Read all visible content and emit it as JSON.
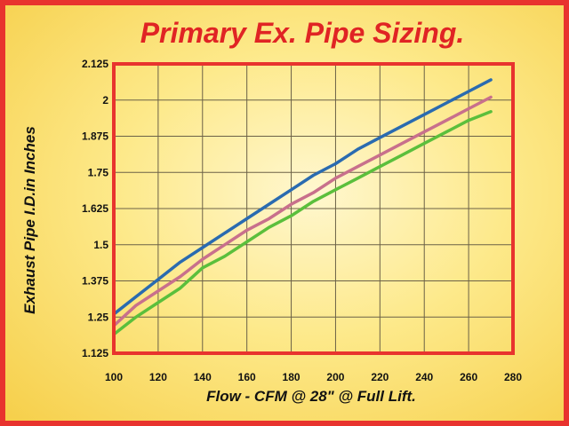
{
  "chart_data": {
    "type": "line",
    "title": "Primary Ex. Pipe Sizing.",
    "xlabel": "Flow - CFM @ 28\" @ Full Lift.",
    "ylabel": "Exhaust Pipe I.D.in Inches",
    "xlim": [
      100,
      280
    ],
    "ylim": [
      1.125,
      2.125
    ],
    "x_ticks": [
      "100",
      "120",
      "140",
      "160",
      "180",
      "200",
      "220",
      "240",
      "260",
      "280"
    ],
    "y_ticks": [
      "1.125",
      "1.25",
      "1.375",
      "1.5",
      "1.625",
      "1.75",
      "1.875",
      "2",
      "2.125"
    ],
    "x_tick_values": [
      100,
      120,
      140,
      160,
      180,
      200,
      220,
      240,
      260,
      280
    ],
    "y_tick_values": [
      1.125,
      1.25,
      1.375,
      1.5,
      1.625,
      1.75,
      1.875,
      2,
      2.125
    ],
    "grid": true,
    "legend": "none",
    "series": [
      {
        "color": "#2a6bb0",
        "x": [
          100,
          110,
          120,
          130,
          140,
          150,
          160,
          170,
          180,
          190,
          200,
          210,
          220,
          230,
          240,
          250,
          260,
          270
        ],
        "y": [
          1.26,
          1.32,
          1.38,
          1.44,
          1.49,
          1.54,
          1.59,
          1.64,
          1.69,
          1.74,
          1.78,
          1.83,
          1.87,
          1.91,
          1.95,
          1.99,
          2.03,
          2.07
        ]
      },
      {
        "color": "#c8708c",
        "x": [
          100,
          110,
          120,
          130,
          140,
          150,
          160,
          170,
          180,
          190,
          200,
          210,
          220,
          230,
          240,
          250,
          260,
          270
        ],
        "y": [
          1.22,
          1.29,
          1.34,
          1.39,
          1.45,
          1.5,
          1.55,
          1.59,
          1.64,
          1.68,
          1.73,
          1.77,
          1.81,
          1.85,
          1.89,
          1.93,
          1.97,
          2.01
        ]
      },
      {
        "color": "#5bbf3c",
        "x": [
          100,
          110,
          120,
          130,
          140,
          150,
          160,
          170,
          180,
          190,
          200,
          210,
          220,
          230,
          240,
          250,
          260,
          270
        ],
        "y": [
          1.19,
          1.25,
          1.3,
          1.35,
          1.42,
          1.46,
          1.51,
          1.56,
          1.6,
          1.65,
          1.69,
          1.73,
          1.77,
          1.81,
          1.85,
          1.89,
          1.93,
          1.96
        ]
      }
    ]
  },
  "colors": {
    "frame_border": "#e8332e",
    "plot_border": "#e8332e",
    "grid": "#6b6147",
    "title": "#e02424"
  }
}
